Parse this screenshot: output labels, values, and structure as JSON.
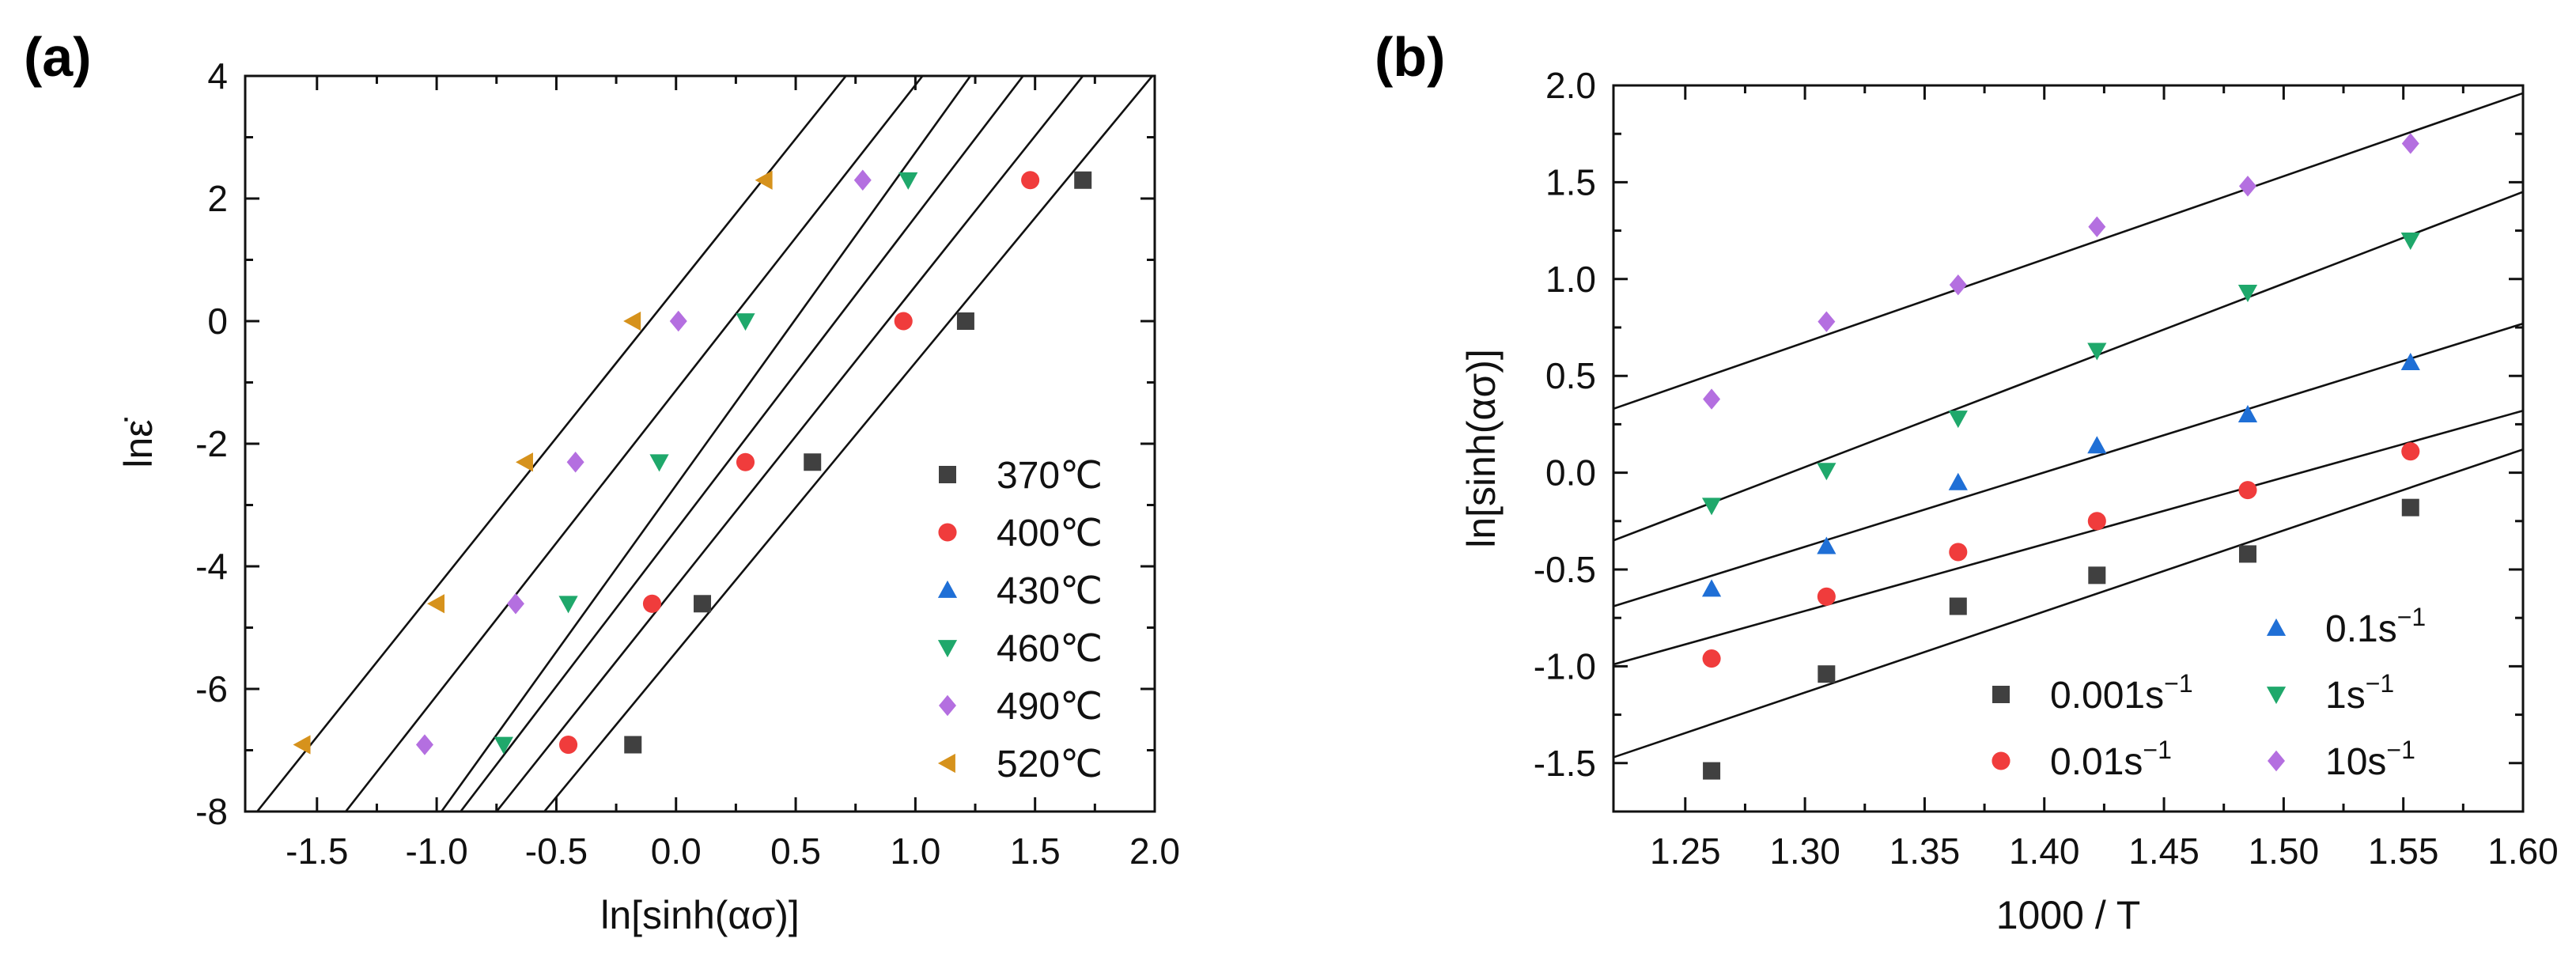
{
  "panels": [
    {
      "label": "(a)"
    },
    {
      "label": "(b)"
    }
  ],
  "chart_data": [
    {
      "type": "scatter",
      "panel": "(a)",
      "xlabel": "ln[sinh(ασ)]",
      "ylabel": "lnε̇",
      "xlim": [
        -1.8,
        2.0
      ],
      "ylim": [
        -8,
        4
      ],
      "xticks": [
        -1.5,
        -1.0,
        -0.5,
        0.0,
        0.5,
        1.0,
        1.5,
        2.0
      ],
      "xtick_labels": [
        "-1.5",
        "-1.0",
        "-0.5",
        "0.0",
        "0.5",
        "1.0",
        "1.5",
        "2.0"
      ],
      "yticks": [
        -8,
        -6,
        -4,
        -2,
        0,
        2,
        4
      ],
      "ytick_labels": [
        "-8",
        "-6",
        "-4",
        "-2",
        "0",
        "2",
        "4"
      ],
      "legend_position": "bottom-right",
      "series": [
        {
          "name": "370℃",
          "color": "#404040",
          "marker": "square",
          "x": [
            -0.18,
            0.11,
            0.57,
            1.21,
            1.7
          ],
          "y": [
            -6.91,
            -4.61,
            -2.3,
            0,
            2.3
          ]
        },
        {
          "name": "400℃",
          "color": "#f03c3c",
          "marker": "circle",
          "x": [
            -0.45,
            -0.1,
            0.29,
            0.95,
            1.48
          ],
          "y": [
            -6.91,
            -4.61,
            -2.3,
            0,
            2.3
          ]
        },
        {
          "name": "430℃",
          "color": "#1f6fd6",
          "marker": "triangle-up",
          "x": [],
          "y": []
        },
        {
          "name": "460℃",
          "color": "#1fa86b",
          "marker": "triangle-down",
          "x": [
            -0.72,
            -0.45,
            -0.07,
            0.29,
            0.97
          ],
          "y": [
            -6.91,
            -4.61,
            -2.3,
            0,
            2.3
          ]
        },
        {
          "name": "490℃",
          "color": "#b46fe0",
          "marker": "diamond",
          "x": [
            -1.05,
            -0.67,
            -0.42,
            0.01,
            0.78
          ],
          "y": [
            -6.91,
            -4.61,
            -2.3,
            0,
            2.3
          ]
        },
        {
          "name": "520℃",
          "color": "#d6921c",
          "marker": "triangle-left",
          "x": [
            -1.56,
            -1.0,
            -0.63,
            -0.18,
            0.37
          ],
          "y": [
            -6.91,
            -4.61,
            -2.3,
            0,
            2.3
          ]
        }
      ],
      "fit_lines": [
        {
          "x": [
            -1.75,
            0.71
          ],
          "y": [
            -8,
            4
          ]
        },
        {
          "x": [
            -1.38,
            1.03
          ],
          "y": [
            -8,
            4
          ]
        },
        {
          "x": [
            -0.98,
            1.23
          ],
          "y": [
            -8,
            4
          ]
        },
        {
          "x": [
            -0.9,
            1.45
          ],
          "y": [
            -8,
            4
          ]
        },
        {
          "x": [
            -0.75,
            1.7
          ],
          "y": [
            -8,
            4
          ]
        },
        {
          "x": [
            -0.55,
            1.99
          ],
          "y": [
            -8,
            4
          ]
        }
      ]
    },
    {
      "type": "scatter",
      "panel": "(b)",
      "xlabel": "1000 / T",
      "ylabel": "ln[sinh(ασ)]",
      "xlim": [
        1.22,
        1.6
      ],
      "ylim": [
        -1.75,
        2.0
      ],
      "xticks": [
        1.25,
        1.3,
        1.35,
        1.4,
        1.45,
        1.5,
        1.55,
        1.6
      ],
      "xtick_labels": [
        "1.25",
        "1.30",
        "1.35",
        "1.40",
        "1.45",
        "1.50",
        "1.55",
        "1.60"
      ],
      "yticks": [
        -1.5,
        -1.0,
        -0.5,
        0.0,
        0.5,
        1.0,
        1.5,
        2.0
      ],
      "ytick_labels": [
        "-1.5",
        "-1.0",
        "-0.5",
        "0.0",
        "0.5",
        "1.0",
        "1.5",
        "2.0"
      ],
      "legend_position": "bottom-right",
      "series": [
        {
          "name": "0.001s",
          "sup": "−1",
          "color": "#404040",
          "marker": "square",
          "x": [
            1.261,
            1.309,
            1.364,
            1.422,
            1.485,
            1.553
          ],
          "y": [
            -1.54,
            -1.04,
            -0.69,
            -0.53,
            -0.42,
            -0.18
          ]
        },
        {
          "name": "0.01s",
          "sup": "−1",
          "color": "#f03c3c",
          "marker": "circle",
          "x": [
            1.261,
            1.309,
            1.364,
            1.422,
            1.485,
            1.553
          ],
          "y": [
            -0.96,
            -0.64,
            -0.41,
            -0.25,
            -0.09,
            0.11
          ]
        },
        {
          "name": "0.1s",
          "sup": "−1",
          "color": "#1f6fd6",
          "marker": "triangle-up",
          "x": [
            1.261,
            1.309,
            1.364,
            1.422,
            1.485,
            1.553
          ],
          "y": [
            -0.6,
            -0.38,
            -0.05,
            0.14,
            0.3,
            0.57
          ]
        },
        {
          "name": "1s",
          "sup": "−1",
          "color": "#1fa86b",
          "marker": "triangle-down",
          "x": [
            1.261,
            1.309,
            1.364,
            1.422,
            1.485,
            1.553
          ],
          "y": [
            -0.17,
            0.01,
            0.28,
            0.63,
            0.93,
            1.2
          ]
        },
        {
          "name": "10s",
          "sup": "−1",
          "color": "#b46fe0",
          "marker": "diamond",
          "x": [
            1.261,
            1.309,
            1.364,
            1.422,
            1.485,
            1.553
          ],
          "y": [
            0.38,
            0.78,
            0.97,
            1.27,
            1.48,
            1.7
          ]
        }
      ],
      "fit_lines": [
        {
          "x": [
            1.22,
            1.6
          ],
          "y": [
            -1.47,
            0.12
          ]
        },
        {
          "x": [
            1.22,
            1.6
          ],
          "y": [
            -0.99,
            0.32
          ]
        },
        {
          "x": [
            1.22,
            1.6
          ],
          "y": [
            -0.69,
            0.77
          ]
        },
        {
          "x": [
            1.22,
            1.6
          ],
          "y": [
            -0.35,
            1.45
          ]
        },
        {
          "x": [
            1.22,
            1.6
          ],
          "y": [
            0.33,
            1.96
          ]
        }
      ]
    }
  ]
}
